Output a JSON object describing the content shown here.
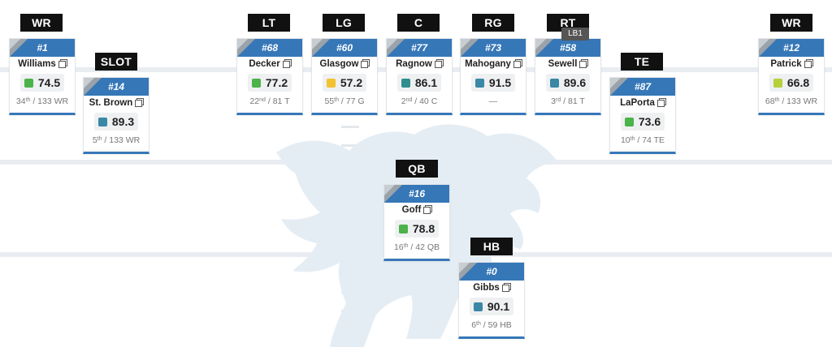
{
  "colors": {
    "header_blue": "#3677b8",
    "tag_black": "#111111",
    "grade_green": "#4cb24a",
    "grade_yellow": "#f2c230",
    "grade_teal": "#2f8e8d",
    "grade_blue": "#3a87a6",
    "grade_lime": "#b6cf3c"
  },
  "tooltip": "LB1",
  "players": {
    "wr1": {
      "pos": "WR",
      "num": "#1",
      "name": "Williams",
      "grade": "74.5",
      "grade_color": "#4cb24a",
      "rank": "34",
      "suf": "th",
      "rank_rest": " / 133 WR"
    },
    "slot": {
      "pos": "SLOT",
      "num": "#14",
      "name": "St. Brown",
      "grade": "89.3",
      "grade_color": "#3a87a6",
      "rank": "5",
      "suf": "th",
      "rank_rest": " / 133 WR"
    },
    "lt": {
      "pos": "LT",
      "num": "#68",
      "name": "Decker",
      "grade": "77.2",
      "grade_color": "#4cb24a",
      "rank": "22",
      "suf": "nd",
      "rank_rest": " / 81 T"
    },
    "lg": {
      "pos": "LG",
      "num": "#60",
      "name": "Glasgow",
      "grade": "57.2",
      "grade_color": "#f2c230",
      "rank": "55",
      "suf": "th",
      "rank_rest": " / 77 G"
    },
    "c": {
      "pos": "C",
      "num": "#77",
      "name": "Ragnow",
      "grade": "86.1",
      "grade_color": "#2f8e8d",
      "rank": "2",
      "suf": "nd",
      "rank_rest": " / 40 C"
    },
    "rg": {
      "pos": "RG",
      "num": "#73",
      "name": "Mahogany",
      "grade": "91.5",
      "grade_color": "#3a87a6",
      "rank_text": "—"
    },
    "rt": {
      "pos": "RT",
      "num": "#58",
      "name": "Sewell",
      "grade": "89.6",
      "grade_color": "#3a87a6",
      "rank": "3",
      "suf": "rd",
      "rank_rest": " / 81 T"
    },
    "te": {
      "pos": "TE",
      "num": "#87",
      "name": "LaPorta",
      "grade": "73.6",
      "grade_color": "#4cb24a",
      "rank": "10",
      "suf": "th",
      "rank_rest": " / 74 TE"
    },
    "wr2": {
      "pos": "WR",
      "num": "#12",
      "name": "Patrick",
      "grade": "66.8",
      "grade_color": "#b6cf3c",
      "rank": "68",
      "suf": "th",
      "rank_rest": " / 133 WR"
    },
    "qb": {
      "pos": "QB",
      "num": "#16",
      "name": "Goff",
      "grade": "78.8",
      "grade_color": "#4cb24a",
      "rank": "16",
      "suf": "th",
      "rank_rest": " / 42 QB"
    },
    "hb": {
      "pos": "HB",
      "num": "#0",
      "name": "Gibbs",
      "grade": "90.1",
      "grade_color": "#3a87a6",
      "rank": "6",
      "suf": "th",
      "rank_rest": " / 59 HB"
    }
  }
}
